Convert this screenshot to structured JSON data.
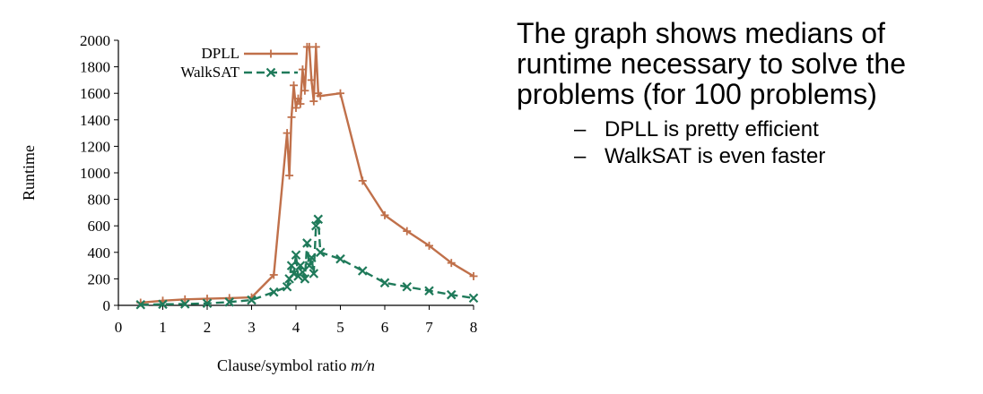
{
  "chart_data": {
    "type": "line",
    "xlabel": "Clause/symbol ratio m/n",
    "xlabel_plain": "Clause/symbol ratio ",
    "xlabel_italic": "m/n",
    "ylabel": "Runtime",
    "xlim": [
      0,
      8
    ],
    "ylim": [
      0,
      2000
    ],
    "xticks": [
      0,
      1,
      2,
      3,
      4,
      5,
      6,
      7,
      8
    ],
    "yticks": [
      0,
      200,
      400,
      600,
      800,
      1000,
      1200,
      1400,
      1600,
      1800,
      2000
    ],
    "grid": false,
    "legend_position": "top-left",
    "series": [
      {
        "name": "DPLL",
        "color": "#c0704a",
        "marker": "plus",
        "line_style": "solid",
        "x": [
          0.5,
          1.0,
          1.5,
          2.0,
          2.5,
          3.0,
          3.5,
          3.8,
          3.85,
          3.9,
          3.95,
          4.0,
          4.05,
          4.1,
          4.15,
          4.2,
          4.25,
          4.3,
          4.35,
          4.4,
          4.45,
          4.5,
          4.55,
          5.0,
          5.5,
          6.0,
          6.5,
          7.0,
          7.5,
          8.0
        ],
        "y": [
          20,
          35,
          45,
          50,
          55,
          60,
          230,
          1300,
          980,
          1420,
          1660,
          1490,
          1560,
          1520,
          1780,
          1620,
          1950,
          1950,
          1700,
          1540,
          1950,
          1600,
          1580,
          1600,
          940,
          680,
          560,
          450,
          320,
          220
        ]
      },
      {
        "name": "WalkSAT",
        "color": "#1f7a5a",
        "marker": "x",
        "line_style": "dashed",
        "x": [
          0.5,
          1.0,
          1.5,
          2.0,
          2.5,
          3.0,
          3.5,
          3.8,
          3.85,
          3.9,
          3.95,
          4.0,
          4.05,
          4.1,
          4.15,
          4.2,
          4.25,
          4.3,
          4.35,
          4.4,
          4.45,
          4.5,
          4.55,
          5.0,
          5.5,
          6.0,
          6.5,
          7.0,
          7.5,
          8.0
        ],
        "y": [
          5,
          8,
          10,
          15,
          25,
          40,
          100,
          140,
          200,
          300,
          240,
          380,
          220,
          300,
          250,
          200,
          470,
          300,
          360,
          240,
          600,
          650,
          400,
          350,
          260,
          170,
          140,
          110,
          80,
          55
        ]
      }
    ]
  },
  "text_panel": {
    "heading": "The graph shows medians of runtime necessary to solve the problems (for 100 problems)",
    "heading_lines": [
      "The graph shows medians of",
      "runtime necessary to solve the",
      "problems (for 100 problems)"
    ],
    "bullet_marker": "–",
    "bullets": [
      "DPLL is pretty efficient",
      "WalkSAT is even faster"
    ]
  }
}
